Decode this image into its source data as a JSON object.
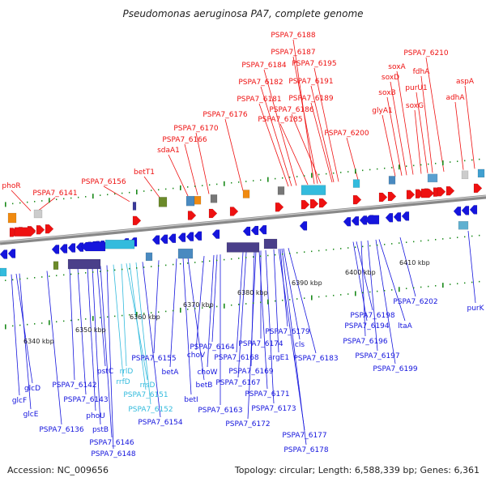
{
  "title": "Pseudomonas aeruginosa PA7, complete genome",
  "footer": {
    "accession": "Accession: NC_009656",
    "summary": "Topology: circular; Length: 6,588,339 bp; Genes: 6,361"
  },
  "colors": {
    "forward": "#ee1111",
    "reverse": "#1515dd",
    "rna": "#33bbdd",
    "backbone": "#999999"
  },
  "ticks": [
    "6340 kbp",
    "6350 kbp",
    "6360 kbp",
    "6370 kbp",
    "6380 kbp",
    "6390 kbp",
    "6400 kbp",
    "6410 kbp"
  ],
  "top_labels": [
    "PSPA7_6188",
    "PSPA7_6187",
    "PSPA7_6184",
    "PSPA7_6195",
    "PSPA7_6182",
    "PSPA7_6191",
    "PSPA7_6181",
    "PSPA7_6189",
    "PSPA7_6186",
    "PSPA7_6176",
    "PSPA7_6185",
    "PSPA7_6170",
    "PSPA7_6200",
    "PSPA7_6166",
    "sdaA1",
    "betT1",
    "PSPA7_6156",
    "phoR",
    "PSPA7_6141",
    "PSPA7_6210",
    "soxA",
    "fdhA",
    "soxD",
    "purU1",
    "soxB",
    "aspA",
    "adhA",
    "glyA1",
    "soxG"
  ],
  "bottom_labels": [
    "6400 kbp",
    "6410 kbp",
    "PSPA7_6202",
    "purK",
    "PSPA7_6198",
    "PSPA7_6194",
    "ltaA",
    "PSPA7_6196",
    "PSPA7_6197",
    "PSPA7_6199",
    "PSPA7_6179",
    "cls",
    "PSPA7_6183",
    "argE1",
    "PSPA7_6174",
    "PSPA7_6164",
    "choV",
    "PSPA7_6168",
    "choW",
    "PSPA7_6169",
    "PSPA7_6167",
    "PSPA7_6171",
    "PSPA7_6163",
    "PSPA7_6173",
    "PSPA7_6172",
    "PSPA7_6177",
    "PSPA7_6178",
    "PSPA7_6155",
    "betA",
    "betB",
    "betI",
    "rrlD",
    "rrfD",
    "rrsD",
    "PSPA7_6151",
    "PSPA7_6152",
    "PSPA7_6154",
    "pstC",
    "PSPA7_6142",
    "PSPA7_6143",
    "phoU",
    "pstB",
    "PSPA7_6146",
    "PSPA7_6148",
    "glcD",
    "glcF",
    "glcE",
    "PSPA7_6136"
  ]
}
